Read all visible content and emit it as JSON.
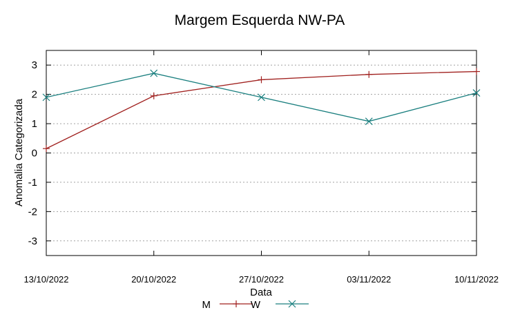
{
  "chart_data": {
    "type": "line",
    "title": "Margem Esquerda NW-PA",
    "xlabel": "Data",
    "ylabel": "Anomalia Categorizada",
    "categories": [
      "13/10/2022",
      "20/10/2022",
      "27/10/2022",
      "03/11/2022",
      "10/11/2022"
    ],
    "ylim": [
      -3.5,
      3.5
    ],
    "yticks": [
      -3,
      -2,
      -1,
      0,
      1,
      2,
      3
    ],
    "ytick_labels": [
      "-3",
      "-2",
      "-1",
      "0",
      "1",
      "2",
      "3"
    ],
    "grid": true,
    "legend_position": "bottom-center",
    "series": [
      {
        "name": "M",
        "marker": "plus",
        "color": "#a0201e",
        "values": [
          0.15,
          1.95,
          2.5,
          2.68,
          2.78
        ]
      },
      {
        "name": "W",
        "marker": "cross",
        "color": "#1a7f7f",
        "values": [
          1.9,
          2.72,
          1.9,
          1.08,
          2.05
        ]
      }
    ]
  }
}
